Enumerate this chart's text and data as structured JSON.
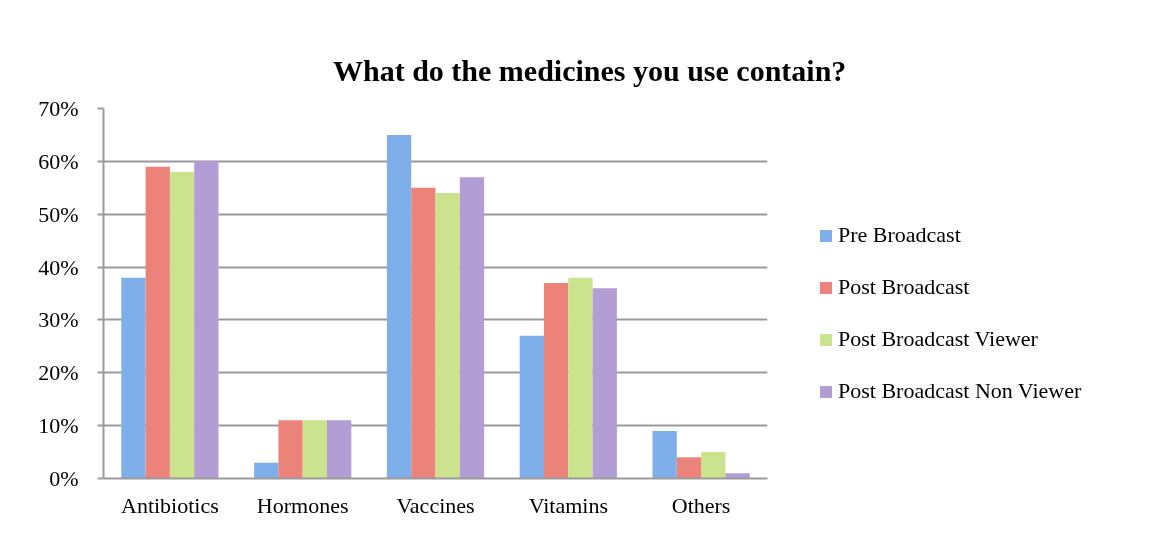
{
  "chart_data": {
    "type": "bar",
    "title": "What do the medicines you use contain?",
    "categories": [
      "Antibiotics",
      "Hormones",
      "Vaccines",
      "Vitamins",
      "Others"
    ],
    "series": [
      {
        "name": "Pre Broadcast",
        "color": "#7eafea",
        "values": [
          38,
          3,
          65,
          27,
          9
        ]
      },
      {
        "name": "Post Broadcast",
        "color": "#ec837a",
        "values": [
          59,
          11,
          55,
          37,
          4
        ]
      },
      {
        "name": "Post Broadcast Viewer",
        "color": "#cbe38c",
        "values": [
          58,
          11,
          54,
          38,
          5
        ]
      },
      {
        "name": "Post Broadcast Non Viewer",
        "color": "#b39dd5",
        "values": [
          60,
          11,
          57,
          36,
          1
        ]
      }
    ],
    "ylim": [
      0,
      70
    ],
    "yticks": [
      {
        "value": 0,
        "label": "0%"
      },
      {
        "value": 10,
        "label": "10%"
      },
      {
        "value": 20,
        "label": "20%"
      },
      {
        "value": 30,
        "label": "30%"
      },
      {
        "value": 40,
        "label": "40%"
      },
      {
        "value": 50,
        "label": "50%"
      },
      {
        "value": 60,
        "label": "60%"
      },
      {
        "value": 70,
        "label": "70%"
      }
    ],
    "grid": "y",
    "legend": "right"
  }
}
